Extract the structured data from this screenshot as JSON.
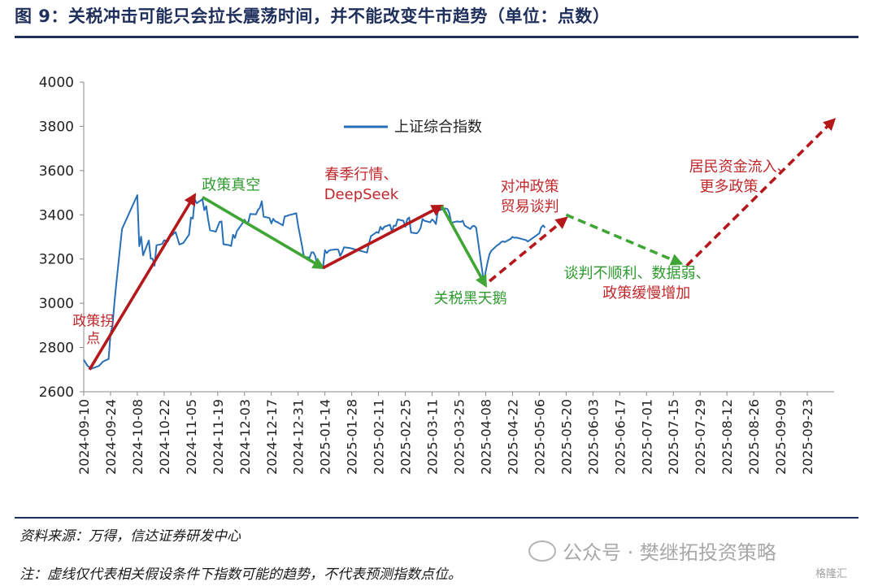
{
  "figure": {
    "title": "图 9：关税冲击可能只会拉长震荡时间，并不能改变牛市趋势（单位：点数）",
    "source": "资料来源：万得，信达证券研发中心",
    "footnote": "注：虚线仅代表相关假设条件下指数可能的趋势，不代表预测指数点位。",
    "watermark": "公众号 · 樊继拓投资策略",
    "watermark_corner": "格隆汇"
  },
  "colors": {
    "index_line": "#2770b8",
    "up_arrow": "#b5181b",
    "down_arrow": "#3fa535",
    "annotation_red": "#c0282c",
    "annotation_green": "#2e9a2e",
    "title_navy": "#1f2f5c"
  },
  "chart_data": {
    "type": "line",
    "ylim": [
      2600,
      4000
    ],
    "y_ticks": [
      "2600",
      "2800",
      "3000",
      "3200",
      "3400",
      "3600",
      "3800",
      "4000"
    ],
    "x_range": [
      "2024-09-10",
      "2025-10-07"
    ],
    "x_ticks": [
      "2024-09-10",
      "2024-09-24",
      "2024-10-08",
      "2024-10-22",
      "2024-11-05",
      "2024-11-19",
      "2024-12-03",
      "2024-12-17",
      "2024-12-31",
      "2025-01-14",
      "2025-01-28",
      "2025-02-11",
      "2025-02-25",
      "2025-03-11",
      "2025-03-25",
      "2025-04-08",
      "2025-04-22",
      "2025-05-06",
      "2025-05-20",
      "2025-06-03",
      "2025-06-17",
      "2025-07-01",
      "2025-07-15",
      "2025-07-29",
      "2025-08-12",
      "2025-08-26",
      "2025-09-09",
      "2025-09-23"
    ],
    "legend": "top-center",
    "series": [
      {
        "name": "上证综合指数",
        "points": [
          [
            "2024-09-10",
            2745
          ],
          [
            "2024-09-12",
            2717
          ],
          [
            "2024-09-14",
            2704
          ],
          [
            "2024-09-18",
            2717
          ],
          [
            "2024-09-20",
            2736
          ],
          [
            "2024-09-23",
            2748
          ],
          [
            "2024-09-24",
            2863
          ],
          [
            "2024-09-25",
            2896
          ],
          [
            "2024-09-26",
            3000
          ],
          [
            "2024-09-27",
            3087
          ],
          [
            "2024-09-30",
            3336
          ],
          [
            "2024-10-08",
            3489
          ],
          [
            "2024-10-09",
            3258
          ],
          [
            "2024-10-10",
            3301
          ],
          [
            "2024-10-11",
            3217
          ],
          [
            "2024-10-14",
            3284
          ],
          [
            "2024-10-15",
            3202
          ],
          [
            "2024-10-16",
            3202
          ],
          [
            "2024-10-17",
            3170
          ],
          [
            "2024-10-18",
            3262
          ],
          [
            "2024-10-21",
            3268
          ],
          [
            "2024-10-22",
            3285
          ],
          [
            "2024-10-24",
            3280
          ],
          [
            "2024-10-25",
            3300
          ],
          [
            "2024-10-28",
            3322
          ],
          [
            "2024-10-30",
            3266
          ],
          [
            "2024-11-01",
            3272
          ],
          [
            "2024-11-04",
            3310
          ],
          [
            "2024-11-05",
            3387
          ],
          [
            "2024-11-06",
            3383
          ],
          [
            "2024-11-07",
            3470
          ],
          [
            "2024-11-08",
            3452
          ],
          [
            "2024-11-11",
            3470
          ],
          [
            "2024-11-12",
            3421
          ],
          [
            "2024-11-13",
            3439
          ],
          [
            "2024-11-14",
            3379
          ],
          [
            "2024-11-15",
            3330
          ],
          [
            "2024-11-18",
            3324
          ],
          [
            "2024-11-19",
            3346
          ],
          [
            "2024-11-20",
            3368
          ],
          [
            "2024-11-21",
            3370
          ],
          [
            "2024-11-22",
            3267
          ],
          [
            "2024-11-25",
            3263
          ],
          [
            "2024-11-26",
            3259
          ],
          [
            "2024-11-27",
            3310
          ],
          [
            "2024-11-28",
            3295
          ],
          [
            "2024-11-29",
            3326
          ],
          [
            "2024-12-02",
            3363
          ],
          [
            "2024-12-03",
            3378
          ],
          [
            "2024-12-04",
            3364
          ],
          [
            "2024-12-05",
            3368
          ],
          [
            "2024-12-06",
            3404
          ],
          [
            "2024-12-09",
            3402
          ],
          [
            "2024-12-10",
            3422
          ],
          [
            "2024-12-11",
            3432
          ],
          [
            "2024-12-12",
            3461
          ],
          [
            "2024-12-13",
            3391
          ],
          [
            "2024-12-16",
            3386
          ],
          [
            "2024-12-17",
            3361
          ],
          [
            "2024-12-18",
            3382
          ],
          [
            "2024-12-19",
            3370
          ],
          [
            "2024-12-20",
            3368
          ],
          [
            "2024-12-23",
            3352
          ],
          [
            "2024-12-24",
            3393
          ],
          [
            "2024-12-25",
            3394
          ],
          [
            "2024-12-26",
            3398
          ],
          [
            "2024-12-27",
            3400
          ],
          [
            "2024-12-30",
            3407
          ],
          [
            "2024-12-31",
            3352
          ],
          [
            "2025-01-02",
            3262
          ],
          [
            "2025-01-03",
            3211
          ],
          [
            "2025-01-06",
            3206
          ],
          [
            "2025-01-07",
            3230
          ],
          [
            "2025-01-08",
            3230
          ],
          [
            "2025-01-09",
            3212
          ],
          [
            "2025-01-10",
            3169
          ],
          [
            "2025-01-13",
            3160
          ],
          [
            "2025-01-14",
            3240
          ],
          [
            "2025-01-15",
            3227
          ],
          [
            "2025-01-16",
            3237
          ],
          [
            "2025-01-17",
            3241
          ],
          [
            "2025-01-20",
            3244
          ],
          [
            "2025-01-21",
            3242
          ],
          [
            "2025-01-22",
            3214
          ],
          [
            "2025-01-23",
            3231
          ],
          [
            "2025-01-24",
            3253
          ],
          [
            "2025-01-27",
            3250
          ],
          [
            "2025-02-05",
            3229
          ],
          [
            "2025-02-06",
            3270
          ],
          [
            "2025-02-07",
            3303
          ],
          [
            "2025-02-10",
            3322
          ],
          [
            "2025-02-11",
            3318
          ],
          [
            "2025-02-12",
            3346
          ],
          [
            "2025-02-13",
            3333
          ],
          [
            "2025-02-14",
            3346
          ],
          [
            "2025-02-17",
            3355
          ],
          [
            "2025-02-18",
            3324
          ],
          [
            "2025-02-19",
            3351
          ],
          [
            "2025-02-20",
            3350
          ],
          [
            "2025-02-21",
            3379
          ],
          [
            "2025-02-24",
            3373
          ],
          [
            "2025-02-25",
            3346
          ],
          [
            "2025-02-26",
            3380
          ],
          [
            "2025-02-27",
            3388
          ],
          [
            "2025-02-28",
            3320
          ],
          [
            "2025-03-03",
            3316
          ],
          [
            "2025-03-04",
            3325
          ],
          [
            "2025-03-05",
            3341
          ],
          [
            "2025-03-06",
            3381
          ],
          [
            "2025-03-07",
            3373
          ],
          [
            "2025-03-10",
            3366
          ],
          [
            "2025-03-11",
            3379
          ],
          [
            "2025-03-12",
            3371
          ],
          [
            "2025-03-13",
            3358
          ],
          [
            "2025-03-14",
            3419
          ],
          [
            "2025-03-17",
            3426
          ],
          [
            "2025-03-18",
            3429
          ],
          [
            "2025-03-19",
            3426
          ],
          [
            "2025-03-20",
            3408
          ],
          [
            "2025-03-21",
            3364
          ],
          [
            "2025-03-24",
            3370
          ],
          [
            "2025-03-25",
            3369
          ],
          [
            "2025-03-26",
            3368
          ],
          [
            "2025-03-27",
            3373
          ],
          [
            "2025-03-28",
            3351
          ],
          [
            "2025-03-31",
            3336
          ],
          [
            "2025-04-01",
            3348
          ],
          [
            "2025-04-02",
            3350
          ],
          [
            "2025-04-03",
            3342
          ],
          [
            "2025-04-07",
            3096
          ],
          [
            "2025-04-08",
            3145
          ],
          [
            "2025-04-09",
            3186
          ],
          [
            "2025-04-10",
            3223
          ],
          [
            "2025-04-11",
            3238
          ],
          [
            "2025-04-14",
            3262
          ],
          [
            "2025-04-15",
            3267
          ],
          [
            "2025-04-16",
            3276
          ],
          [
            "2025-04-17",
            3280
          ],
          [
            "2025-04-18",
            3277
          ],
          [
            "2025-04-21",
            3291
          ],
          [
            "2025-04-22",
            3300
          ],
          [
            "2025-04-23",
            3296
          ],
          [
            "2025-04-24",
            3297
          ],
          [
            "2025-04-25",
            3295
          ],
          [
            "2025-04-28",
            3288
          ],
          [
            "2025-04-29",
            3286
          ],
          [
            "2025-04-30",
            3279
          ],
          [
            "2025-05-06",
            3316
          ],
          [
            "2025-05-07",
            3343
          ],
          [
            "2025-05-08",
            3352
          ],
          [
            "2025-05-09",
            3342
          ]
        ]
      }
    ],
    "arrows": [
      {
        "kind": "up",
        "style": "solid",
        "from": [
          "2024-09-13",
          2700
        ],
        "to": [
          "2024-11-07",
          3490
        ]
      },
      {
        "kind": "down",
        "style": "solid",
        "from": [
          "2024-11-11",
          3480
        ],
        "to": [
          "2025-01-13",
          3160
        ]
      },
      {
        "kind": "up",
        "style": "solid",
        "from": [
          "2025-01-13",
          3160
        ],
        "to": [
          "2025-03-16",
          3440
        ]
      },
      {
        "kind": "down",
        "style": "solid",
        "from": [
          "2025-03-16",
          3440
        ],
        "to": [
          "2025-04-08",
          3080
        ]
      },
      {
        "kind": "up",
        "style": "dashed",
        "from": [
          "2025-04-10",
          3100
        ],
        "to": [
          "2025-05-20",
          3385
        ]
      },
      {
        "kind": "down",
        "style": "dashed",
        "from": [
          "2025-05-20",
          3400
        ],
        "to": [
          "2025-07-19",
          3180
        ]
      },
      {
        "kind": "up",
        "style": "dashed",
        "from": [
          "2025-07-22",
          3170
        ],
        "to": [
          "2025-10-07",
          3830
        ]
      }
    ],
    "annotations": [
      {
        "text": "政策拐",
        "date": "2024-09-15",
        "value": 2900,
        "color": "red",
        "size": "s"
      },
      {
        "text": "点",
        "date": "2024-09-15",
        "value": 2820,
        "color": "red",
        "size": "s"
      },
      {
        "text": "政策真空",
        "date": "2024-11-26",
        "value": 3513,
        "color": "green",
        "size": "m"
      },
      {
        "text": "春季行情、",
        "date": "2025-02-02",
        "value": 3560,
        "color": "red",
        "size": "m"
      },
      {
        "text": "DeepSeek",
        "date": "2025-02-02",
        "value": 3470,
        "color": "red",
        "size": "m"
      },
      {
        "text": "关税黑天鹅",
        "date": "2025-03-31",
        "value": 3000,
        "color": "green",
        "size": "m"
      },
      {
        "text": "对冲政策",
        "date": "2025-05-01",
        "value": 3505,
        "color": "red",
        "size": "m"
      },
      {
        "text": "贸易谈判",
        "date": "2025-05-01",
        "value": 3415,
        "color": "red",
        "size": "m"
      },
      {
        "text": "谈判不顺利、数据弱、",
        "date": "2025-06-26",
        "value": 3115,
        "color": "green",
        "size": "m"
      },
      {
        "text": "政策缓慢增加",
        "date": "2025-07-01",
        "value": 3025,
        "color": "red",
        "size": "m"
      },
      {
        "text": "居民资金流入、",
        "date": "2025-08-19",
        "value": 3595,
        "color": "red",
        "size": "m"
      },
      {
        "text": "更多政策",
        "date": "2025-08-13",
        "value": 3505,
        "color": "red",
        "size": "m"
      }
    ]
  }
}
